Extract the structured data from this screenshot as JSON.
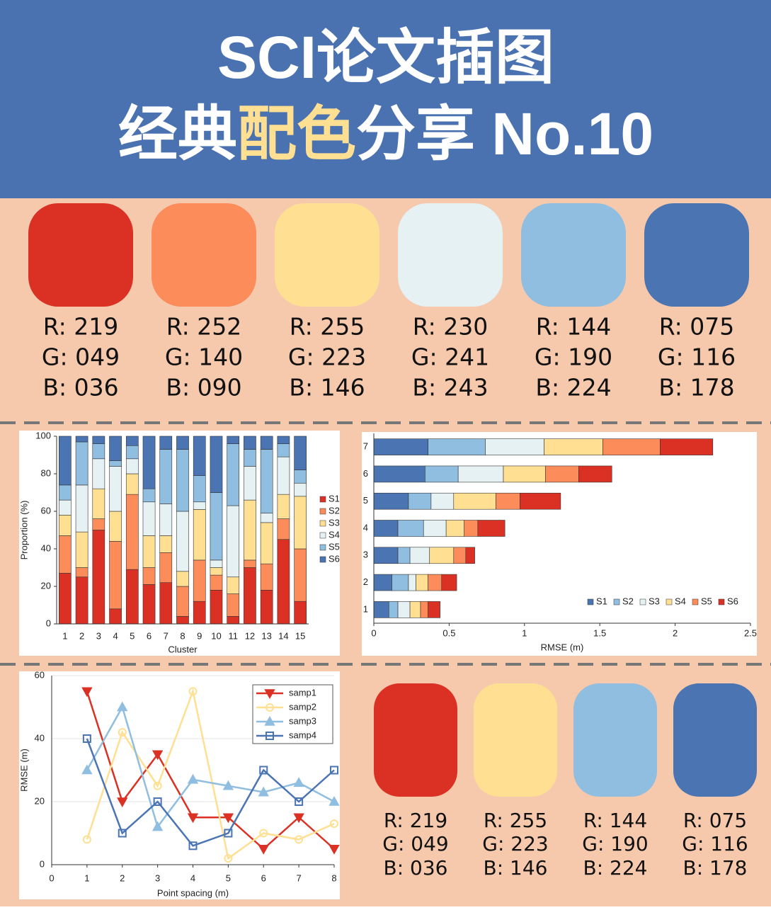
{
  "header": {
    "title_line1": "SCI论文插图",
    "title_line2": [
      "经典",
      "配色",
      "分享 No.10"
    ]
  },
  "palette_top": [
    {
      "color": "#db3124",
      "labels": [
        "R: 219",
        "G: 049",
        "B: 036"
      ]
    },
    {
      "color": "#fc8c5a",
      "labels": [
        "R: 252",
        "G: 140",
        "B: 090"
      ]
    },
    {
      "color": "#ffdf92",
      "labels": [
        "R: 255",
        "G: 223",
        "B: 146"
      ]
    },
    {
      "color": "#e6f1f3",
      "labels": [
        "R: 230",
        "G: 241",
        "B: 243"
      ]
    },
    {
      "color": "#90bee0",
      "labels": [
        "R: 144",
        "G: 190",
        "B: 224"
      ]
    },
    {
      "color": "#4b74b2",
      "labels": [
        "R: 075",
        "G: 116",
        "B: 178"
      ]
    }
  ],
  "palette_bottom": [
    {
      "color": "#db3124",
      "labels": [
        "R: 219",
        "G: 049",
        "B: 036"
      ]
    },
    {
      "color": "#ffdf92",
      "labels": [
        "R: 255",
        "G: 223",
        "B: 146"
      ]
    },
    {
      "color": "#90bee0",
      "labels": [
        "R: 144",
        "G: 190",
        "B: 224"
      ]
    },
    {
      "color": "#4b74b2",
      "labels": [
        "R: 075",
        "G: 116",
        "B: 178"
      ]
    }
  ],
  "chart_data": [
    {
      "type": "bar",
      "orientation": "vertical",
      "stacked": true,
      "xlabel": "Cluster",
      "ylabel": "Proportion (%)",
      "categories": [
        "1",
        "2",
        "3",
        "4",
        "5",
        "6",
        "7",
        "8",
        "9",
        "10",
        "11",
        "12",
        "13",
        "14",
        "15"
      ],
      "series": [
        {
          "name": "S1",
          "color": "#db3124",
          "values": [
            27,
            25,
            50,
            8,
            29,
            21,
            22,
            4,
            12,
            18,
            4,
            30,
            18,
            45,
            12
          ]
        },
        {
          "name": "S2",
          "color": "#fc8c5a",
          "values": [
            20,
            5,
            6,
            36,
            40,
            9,
            16,
            16,
            22,
            8,
            12,
            4,
            14,
            11,
            28
          ]
        },
        {
          "name": "S3",
          "color": "#ffdf92",
          "values": [
            11,
            19,
            16,
            16,
            11,
            17,
            9,
            8,
            27,
            4,
            9,
            32,
            22,
            13,
            28
          ]
        },
        {
          "name": "S4",
          "color": "#e6f1f3",
          "values": [
            8,
            25,
            16,
            24,
            8,
            18,
            17,
            32,
            4,
            4,
            38,
            18,
            5,
            20,
            7
          ]
        },
        {
          "name": "S5",
          "color": "#90bee0",
          "values": [
            8,
            23,
            8,
            3,
            7,
            7,
            29,
            33,
            14,
            36,
            33,
            9,
            34,
            7,
            7
          ]
        },
        {
          "name": "S6",
          "color": "#4b74b2",
          "values": [
            26,
            3,
            4,
            13,
            5,
            28,
            7,
            7,
            21,
            30,
            4,
            7,
            7,
            4,
            18
          ]
        }
      ],
      "ylim": [
        0,
        100
      ],
      "yticks": [
        0,
        20,
        40,
        60,
        80,
        100
      ],
      "legend": "right"
    },
    {
      "type": "bar",
      "orientation": "horizontal",
      "stacked": true,
      "xlabel": "RMSE (m)",
      "categories": [
        "1",
        "2",
        "3",
        "4",
        "5",
        "6",
        "7"
      ],
      "series": [
        {
          "name": "S1",
          "color": "#4b74b2",
          "values": [
            0.1,
            0.12,
            0.16,
            0.16,
            0.23,
            0.34,
            0.36
          ]
        },
        {
          "name": "S2",
          "color": "#90bee0",
          "values": [
            0.06,
            0.11,
            0.08,
            0.17,
            0.15,
            0.22,
            0.38
          ]
        },
        {
          "name": "S3",
          "color": "#e6f1f3",
          "values": [
            0.08,
            0.05,
            0.13,
            0.15,
            0.15,
            0.3,
            0.39
          ]
        },
        {
          "name": "S4",
          "color": "#ffdf92",
          "values": [
            0.07,
            0.08,
            0.16,
            0.12,
            0.28,
            0.28,
            0.39
          ]
        },
        {
          "name": "S5",
          "color": "#fc8c5a",
          "values": [
            0.05,
            0.09,
            0.08,
            0.09,
            0.16,
            0.22,
            0.38
          ]
        },
        {
          "name": "S6",
          "color": "#db3124",
          "values": [
            0.08,
            0.1,
            0.06,
            0.18,
            0.27,
            0.22,
            0.35
          ]
        }
      ],
      "xlim": [
        0,
        2.5
      ],
      "xticks": [
        0,
        0.5,
        1,
        1.5,
        2,
        2.5
      ],
      "legend": "lower-right"
    },
    {
      "type": "line",
      "xlabel": "Point spacing (m)",
      "ylabel": "RMSE (m)",
      "x": [
        1,
        2,
        3,
        4,
        5,
        6,
        7,
        8
      ],
      "series": [
        {
          "name": "samp1",
          "color": "#db3124",
          "marker": "triangle-down",
          "values": [
            55,
            20,
            35,
            15,
            15,
            5,
            15,
            5
          ]
        },
        {
          "name": "samp2",
          "color": "#ffdf92",
          "marker": "circle",
          "values": [
            8,
            42,
            25,
            55,
            2,
            10,
            8,
            13
          ]
        },
        {
          "name": "samp3",
          "color": "#90bee0",
          "marker": "triangle-up",
          "values": [
            30,
            50,
            12,
            27,
            25,
            23,
            26,
            20
          ]
        },
        {
          "name": "samp4",
          "color": "#4b74b2",
          "marker": "square",
          "values": [
            40,
            10,
            20,
            6,
            10,
            30,
            20,
            30
          ]
        }
      ],
      "xlim": [
        0,
        8
      ],
      "xticks": [
        0,
        1,
        2,
        3,
        4,
        5,
        6,
        7,
        8
      ],
      "ylim": [
        0,
        60
      ],
      "yticks": [
        0,
        20,
        40,
        60
      ],
      "grid": true,
      "legend": "upper-right"
    }
  ]
}
